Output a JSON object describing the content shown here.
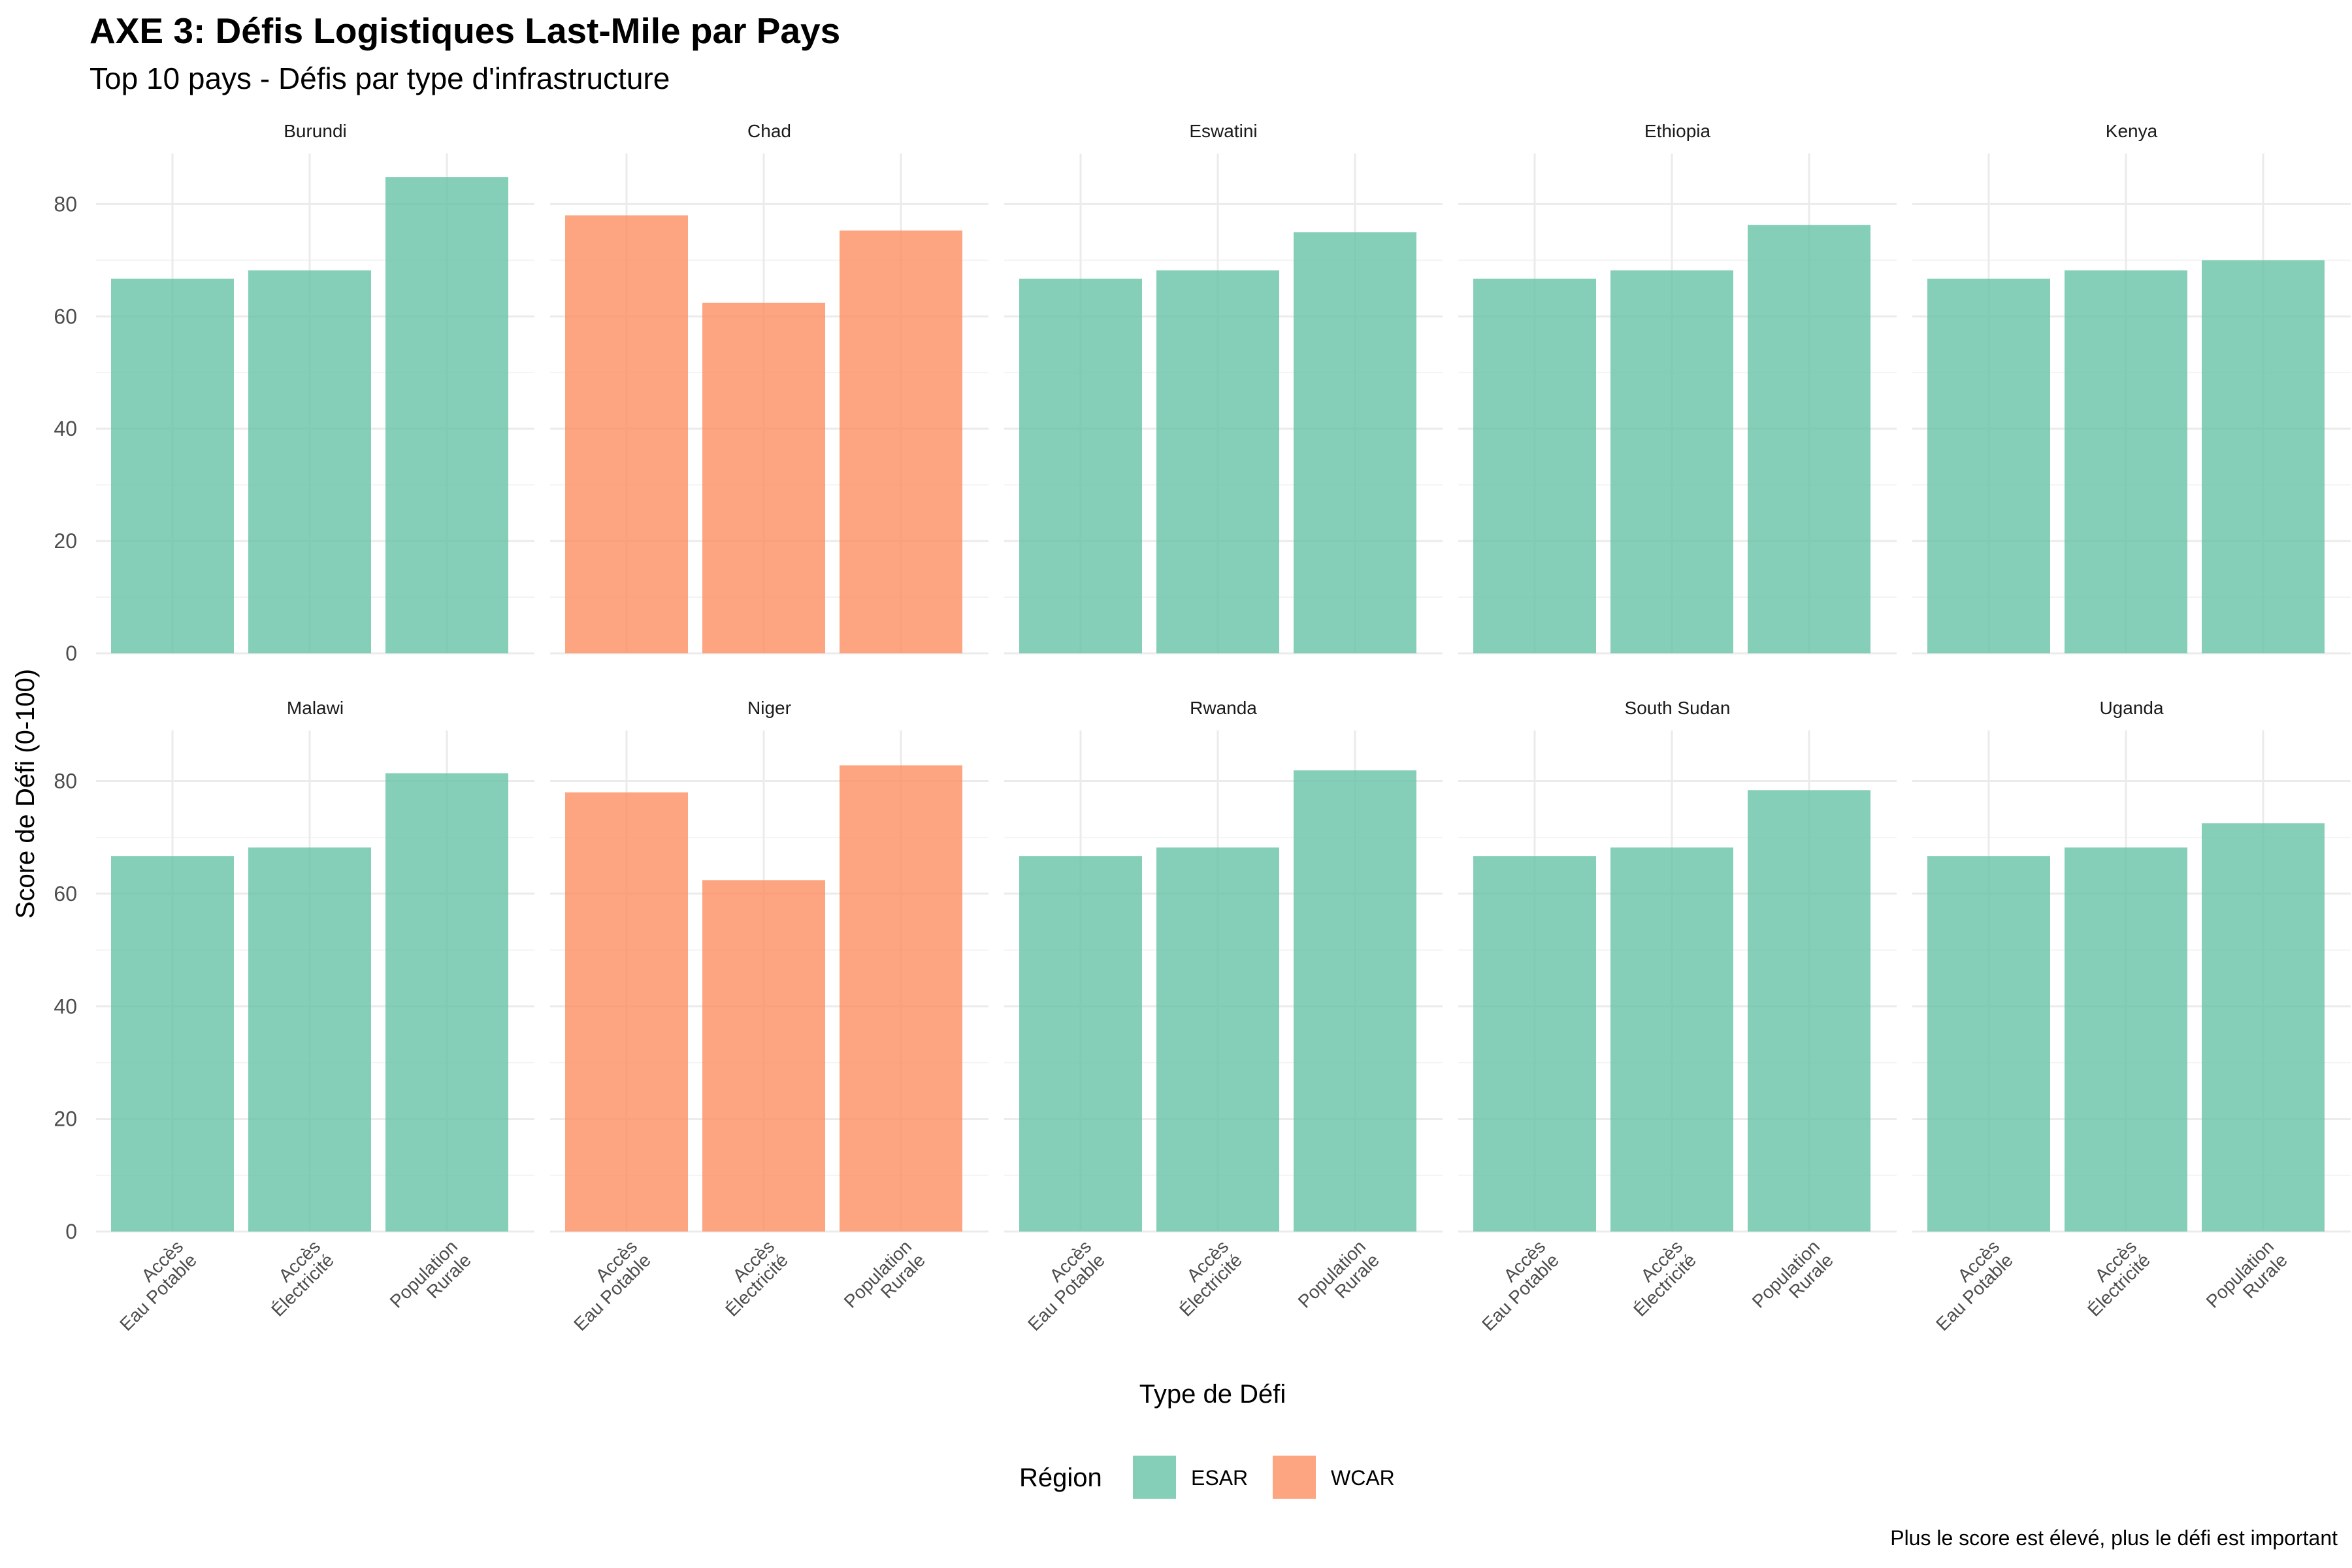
{
  "chart_data": {
    "type": "bar",
    "title": "AXE 3: Défis Logistiques Last-Mile par Pays",
    "subtitle": "Top 10 pays - Défis par type d'infrastructure",
    "xlabel": "Type de Défi",
    "ylabel": "Score de Défi (0-100)",
    "caption": "Plus le score est élevé, plus le défi est important",
    "categories": [
      [
        "Accès",
        "Eau Potable"
      ],
      [
        "Accès",
        "Électricité"
      ],
      [
        "Population",
        "Rurale"
      ]
    ],
    "ylim": [
      0,
      89
    ],
    "yticks": [
      0,
      20,
      40,
      60,
      80
    ],
    "grid": true,
    "legend": {
      "title": "Région",
      "position": "bottom",
      "items": [
        {
          "name": "ESAR",
          "color": "#66c2a5"
        },
        {
          "name": "WCAR",
          "color": "#fc8d62"
        }
      ]
    },
    "facets": [
      {
        "country": "Burundi",
        "region": "ESAR",
        "values": [
          66.7,
          68.2,
          84.8
        ]
      },
      {
        "country": "Chad",
        "region": "WCAR",
        "values": [
          78.0,
          62.4,
          75.3
        ]
      },
      {
        "country": "Eswatini",
        "region": "ESAR",
        "values": [
          66.7,
          68.2,
          75.0
        ]
      },
      {
        "country": "Ethiopia",
        "region": "ESAR",
        "values": [
          66.7,
          68.2,
          76.3
        ]
      },
      {
        "country": "Kenya",
        "region": "ESAR",
        "values": [
          66.7,
          68.2,
          70.0
        ]
      },
      {
        "country": "Malawi",
        "region": "ESAR",
        "values": [
          66.7,
          68.2,
          81.4
        ]
      },
      {
        "country": "Niger",
        "region": "WCAR",
        "values": [
          78.0,
          62.4,
          82.8
        ]
      },
      {
        "country": "Rwanda",
        "region": "ESAR",
        "values": [
          66.7,
          68.2,
          81.9
        ]
      },
      {
        "country": "South Sudan",
        "region": "ESAR",
        "values": [
          66.7,
          68.2,
          78.4
        ]
      },
      {
        "country": "Uganda",
        "region": "ESAR",
        "values": [
          66.7,
          68.2,
          72.5
        ]
      }
    ]
  }
}
